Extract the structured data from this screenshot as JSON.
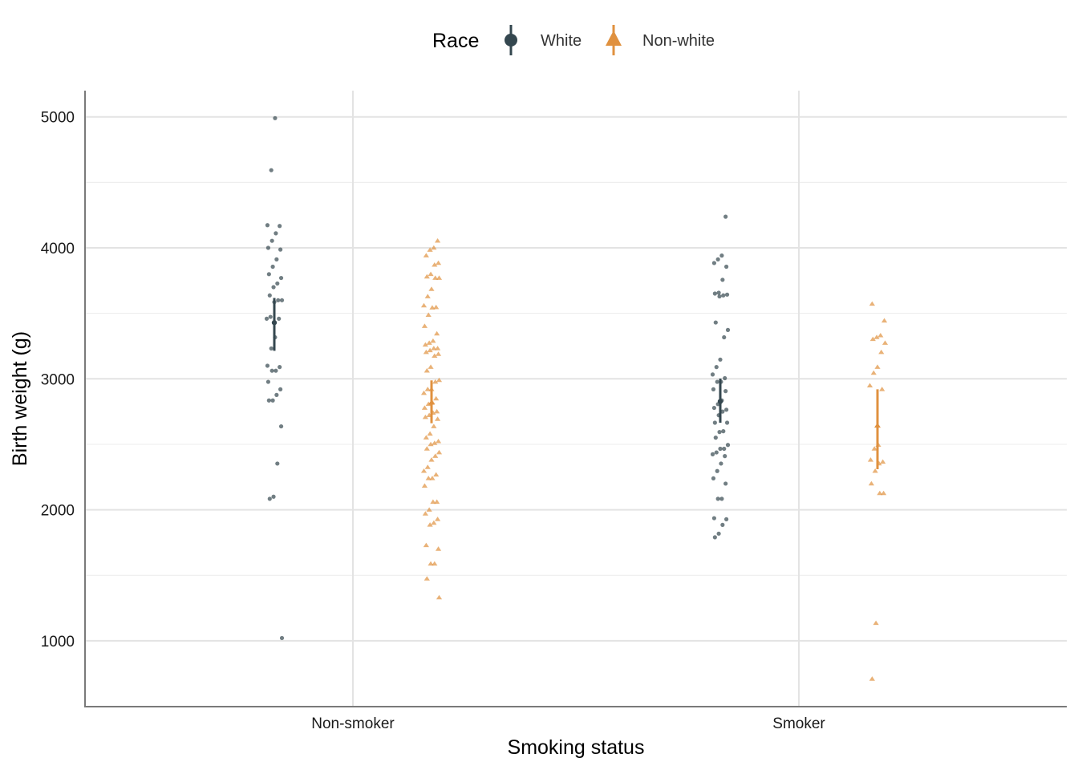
{
  "chart_data": {
    "type": "scatter",
    "title": "",
    "xlabel": "Smoking status",
    "ylabel": "Birth weight (g)",
    "categories": [
      "Non-smoker",
      "Smoker"
    ],
    "y_ticks": [
      1000,
      2000,
      3000,
      4000,
      5000
    ],
    "ylim": [
      500,
      5200
    ],
    "grid": true,
    "legend": {
      "title": "Race",
      "position": "top"
    },
    "series": [
      {
        "name": "White",
        "color": "#34474f",
        "marker": "circle",
        "summary": [
          {
            "category": "Non-smoker",
            "mean": 3429,
            "lower": 3214,
            "upper": 3617
          },
          {
            "category": "Smoker",
            "mean": 2827,
            "lower": 2665,
            "upper": 3002
          }
        ],
        "points": {
          "Non-smoker": [
            4990,
            4593,
            4173,
            4167,
            4111,
            4054,
            4000,
            3987,
            3912,
            3856,
            3799,
            3770,
            3728,
            3700,
            3637,
            3600,
            3600,
            3586,
            3473,
            3459,
            3459,
            3317,
            3232,
            3100,
            3090,
            3062,
            3062,
            2977,
            2920,
            2877,
            2835,
            2835,
            2637,
            2353,
            2100,
            2084,
            1021
          ],
          "Smoker": [
            4238,
            3941,
            3912,
            3884,
            3856,
            3756,
            3657,
            3651,
            3643,
            3637,
            3629,
            3430,
            3373,
            3317,
            3147,
            3090,
            3033,
            3005,
            2977,
            2977,
            2920,
            2906,
            2835,
            2807,
            2778,
            2764,
            2750,
            2722,
            2665,
            2665,
            2600,
            2594,
            2551,
            2495,
            2466,
            2466,
            2438,
            2424,
            2410,
            2353,
            2296,
            2240,
            2200,
            2084,
            2084,
            1936,
            1928,
            1885,
            1818,
            1790
          ]
        }
      },
      {
        "name": "Non-white",
        "color": "#e0913f",
        "marker": "triangle",
        "summary": [
          {
            "category": "Non-smoker",
            "mean": 2818,
            "lower": 2661,
            "upper": 2988
          },
          {
            "category": "Smoker",
            "mean": 2643,
            "lower": 2310,
            "upper": 2920
          }
        ],
        "points": {
          "Non-smoker": [
            4054,
            4000,
            3984,
            3941,
            3884,
            3870,
            3799,
            3780,
            3770,
            3770,
            3685,
            3629,
            3559,
            3546,
            3543,
            3487,
            3402,
            3345,
            3289,
            3274,
            3260,
            3232,
            3232,
            3217,
            3203,
            3189,
            3175,
            3090,
            3062,
            2990,
            2977,
            2920,
            2920,
            2891,
            2849,
            2820,
            2807,
            2778,
            2750,
            2740,
            2722,
            2707,
            2693,
            2637,
            2580,
            2551,
            2523,
            2509,
            2500,
            2466,
            2438,
            2410,
            2381,
            2325,
            2296,
            2268,
            2240,
            2240,
            2183,
            2060,
            2060,
            2000,
            1970,
            1928,
            1900,
            1885,
            1729,
            1701,
            1588,
            1588,
            1474,
            1330
          ],
          "Smoker": [
            3572,
            3444,
            3331,
            3317,
            3303,
            3274,
            3203,
            3090,
            3045,
            2948,
            2920,
            2495,
            2466,
            2381,
            2366,
            2353,
            2296,
            2200,
            2126,
            2126,
            1135,
            709
          ]
        }
      }
    ]
  }
}
